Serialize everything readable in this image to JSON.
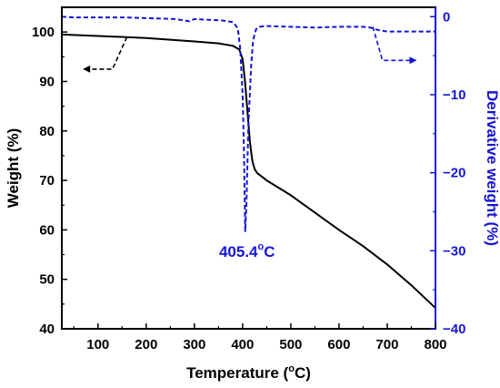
{
  "chart_data": {
    "type": "line",
    "xlabel_main": "Temperature (",
    "xlabel_sup": "o",
    "xlabel_tail": "C)",
    "ylabel_left": "Weight (%)",
    "ylabel_right": "Derivative weight (%)",
    "xlim": [
      25,
      800
    ],
    "ylim_left": [
      40,
      105
    ],
    "ylim_right": [
      -40,
      1.2
    ],
    "x_ticks": [
      100,
      200,
      300,
      400,
      500,
      600,
      700,
      800
    ],
    "y_left_ticks": [
      40,
      50,
      60,
      70,
      80,
      90,
      100
    ],
    "y_right_ticks": [
      -40,
      -30,
      -20,
      -10,
      0
    ],
    "y_right_tick_labels": [
      "−40",
      "−30",
      "−20",
      "−10",
      "0"
    ],
    "colors": {
      "weight": "#000000",
      "derivative": "#1515d6"
    },
    "series": [
      {
        "axis": "left",
        "style": "solid",
        "x": [
          25,
          100,
          200,
          300,
          350,
          380,
          393,
          400,
          405,
          410,
          415,
          420,
          425,
          430,
          450,
          500,
          550,
          600,
          650,
          700,
          750,
          800
        ],
        "y": [
          99.5,
          99.2,
          98.8,
          98.1,
          97.7,
          97.2,
          96.5,
          94.5,
          90,
          84,
          78,
          74,
          72.3,
          71.5,
          70,
          67,
          63.5,
          60,
          56.7,
          53,
          48.8,
          44.2
        ]
      },
      {
        "axis": "right",
        "style": "dashed",
        "x": [
          25,
          50,
          150,
          260,
          290,
          300,
          360,
          380,
          390,
          395,
          400,
          403,
          405.4,
          408,
          412,
          418,
          422,
          428,
          435,
          450,
          500,
          550,
          600,
          650,
          665,
          680,
          700,
          750,
          800
        ],
        "y": [
          0,
          -0.1,
          -0.1,
          -0.3,
          -0.6,
          -0.3,
          -0.5,
          -0.7,
          -1.5,
          -4,
          -10,
          -18,
          -27.5,
          -24,
          -14,
          -6,
          -3,
          -1.6,
          -1.3,
          -1.2,
          -1.3,
          -1.4,
          -1.3,
          -1.3,
          -1.4,
          -1.7,
          -1.9,
          -1.9,
          -1.9
        ]
      }
    ],
    "annotation": {
      "x": 405.4,
      "y": -27.5,
      "num": "405.4",
      "sup": "o",
      "unit": "C"
    },
    "arrow_left": {
      "points": [
        [
          160,
          99
        ],
        [
          160,
          99
        ],
        [
          130,
          92.5
        ],
        [
          80,
          92.5
        ]
      ]
    },
    "arrow_right": {
      "points": [
        [
          670,
          -1.3
        ],
        [
          690,
          -5.6
        ],
        [
          750,
          -5.6
        ]
      ]
    }
  }
}
